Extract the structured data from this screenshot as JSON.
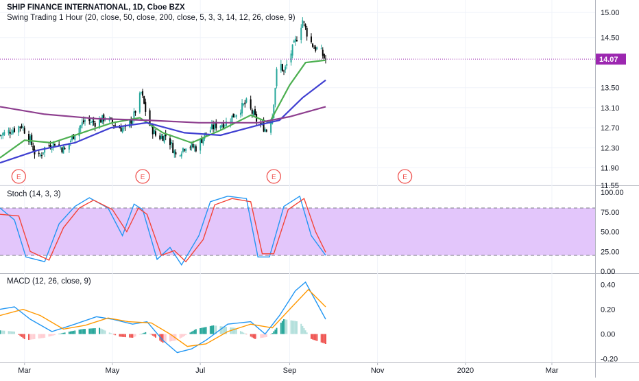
{
  "header": {
    "symbol_line": "SHIP FINANCE INTERNATIONAL, 1D, Cboe BZX",
    "study_line": "Swing Trading 1 Hour (20, close, 50, close, 200, close, 5, 3, 3, 14, 12, 26, close, 9)"
  },
  "colors": {
    "up": "#26a69a",
    "down": "#000000",
    "sma20": "#4caf50",
    "sma50": "#3f3fd1",
    "sma200": "#8e3f8f",
    "stoch_k": "#2196f3",
    "stoch_d": "#f44336",
    "stoch_band": "#e3c6fb",
    "macd": "#2196f3",
    "signal": "#ff9800",
    "hist_pos_strong": "#26a69a",
    "hist_pos_weak": "#b2dfdb",
    "hist_neg_strong": "#ef5350",
    "hist_neg_weak": "#ffcdd2",
    "last_price": "#9c27b0"
  },
  "chart_data": [
    {
      "type": "candlestick",
      "title": "SHIP FINANCE INTERNATIONAL, 1D, Cboe BZX",
      "x_range": [
        "2019-02-12",
        "2020-03-31"
      ],
      "x_ticks": [
        {
          "date": "2019-03-01",
          "label": "Mar"
        },
        {
          "date": "2019-05-01",
          "label": "May"
        },
        {
          "date": "2019-07-01",
          "label": "Jul"
        },
        {
          "date": "2019-09-01",
          "label": "Sep"
        },
        {
          "date": "2019-11-01",
          "label": "Nov"
        },
        {
          "date": "2020-01-01",
          "label": "2020"
        },
        {
          "date": "2020-03-01",
          "label": "Mar"
        }
      ],
      "y_range": [
        11.55,
        15.25
      ],
      "y_ticks": [
        "15.00",
        "14.50",
        "14.07",
        "13.50",
        "13.10",
        "12.70",
        "12.30",
        "11.90",
        "11.55"
      ],
      "last_price": 14.07,
      "last_price_label": "14.07",
      "close_path": [
        {
          "date": "2019-02-12",
          "close": 12.55
        },
        {
          "date": "2019-02-20",
          "close": 12.65
        },
        {
          "date": "2019-02-27",
          "close": 12.75
        },
        {
          "date": "2019-03-05",
          "close": 12.45
        },
        {
          "date": "2019-03-10",
          "close": 12.05
        },
        {
          "date": "2019-03-15",
          "close": 12.3
        },
        {
          "date": "2019-03-22",
          "close": 12.4
        },
        {
          "date": "2019-03-29",
          "close": 12.25
        },
        {
          "date": "2019-04-05",
          "close": 12.6
        },
        {
          "date": "2019-04-12",
          "close": 12.85
        },
        {
          "date": "2019-04-19",
          "close": 12.8
        },
        {
          "date": "2019-04-26",
          "close": 12.9
        },
        {
          "date": "2019-05-03",
          "close": 12.75
        },
        {
          "date": "2019-05-10",
          "close": 12.65
        },
        {
          "date": "2019-05-16",
          "close": 12.95
        },
        {
          "date": "2019-05-21",
          "close": 13.4
        },
        {
          "date": "2019-05-26",
          "close": 12.8
        },
        {
          "date": "2019-06-01",
          "close": 12.5
        },
        {
          "date": "2019-06-08",
          "close": 12.55
        },
        {
          "date": "2019-06-14",
          "close": 12.15
        },
        {
          "date": "2019-06-21",
          "close": 12.35
        },
        {
          "date": "2019-06-28",
          "close": 12.3
        },
        {
          "date": "2019-07-05",
          "close": 12.6
        },
        {
          "date": "2019-07-12",
          "close": 12.75
        },
        {
          "date": "2019-07-19",
          "close": 12.8
        },
        {
          "date": "2019-07-26",
          "close": 13.0
        },
        {
          "date": "2019-08-02",
          "close": 13.2
        },
        {
          "date": "2019-08-09",
          "close": 12.85
        },
        {
          "date": "2019-08-16",
          "close": 12.65
        },
        {
          "date": "2019-08-20",
          "close": 12.95
        },
        {
          "date": "2019-08-24",
          "close": 14.1
        },
        {
          "date": "2019-08-28",
          "close": 13.8
        },
        {
          "date": "2019-09-02",
          "close": 14.2
        },
        {
          "date": "2019-09-06",
          "close": 14.5
        },
        {
          "date": "2019-09-10",
          "close": 14.85
        },
        {
          "date": "2019-09-14",
          "close": 14.5
        },
        {
          "date": "2019-09-18",
          "close": 14.3
        },
        {
          "date": "2019-09-22",
          "close": 14.25
        },
        {
          "date": "2019-09-26",
          "close": 14.05
        }
      ],
      "series": [
        {
          "name": "SMA 20",
          "color_key": "sma20",
          "points": [
            {
              "date": "2019-02-12",
              "value": 12.1
            },
            {
              "date": "2019-03-01",
              "value": 12.45
            },
            {
              "date": "2019-03-20",
              "value": 12.4
            },
            {
              "date": "2019-04-10",
              "value": 12.6
            },
            {
              "date": "2019-05-01",
              "value": 12.8
            },
            {
              "date": "2019-05-20",
              "value": 12.9
            },
            {
              "date": "2019-06-05",
              "value": 12.6
            },
            {
              "date": "2019-06-25",
              "value": 12.4
            },
            {
              "date": "2019-07-15",
              "value": 12.65
            },
            {
              "date": "2019-08-05",
              "value": 12.95
            },
            {
              "date": "2019-08-18",
              "value": 12.8
            },
            {
              "date": "2019-09-01",
              "value": 13.55
            },
            {
              "date": "2019-09-12",
              "value": 14.0
            },
            {
              "date": "2019-09-26",
              "value": 14.05
            }
          ]
        },
        {
          "name": "SMA 50",
          "color_key": "sma50",
          "points": [
            {
              "date": "2019-02-12",
              "value": 12.0
            },
            {
              "date": "2019-03-10",
              "value": 12.25
            },
            {
              "date": "2019-04-05",
              "value": 12.4
            },
            {
              "date": "2019-04-30",
              "value": 12.7
            },
            {
              "date": "2019-05-25",
              "value": 12.8
            },
            {
              "date": "2019-06-20",
              "value": 12.6
            },
            {
              "date": "2019-07-15",
              "value": 12.55
            },
            {
              "date": "2019-08-10",
              "value": 12.75
            },
            {
              "date": "2019-08-25",
              "value": 12.85
            },
            {
              "date": "2019-09-10",
              "value": 13.3
            },
            {
              "date": "2019-09-26",
              "value": 13.65
            }
          ]
        },
        {
          "name": "SMA 200",
          "color_key": "sma200",
          "points": [
            {
              "date": "2019-02-12",
              "value": 13.12
            },
            {
              "date": "2019-03-15",
              "value": 12.97
            },
            {
              "date": "2019-04-20",
              "value": 12.88
            },
            {
              "date": "2019-05-25",
              "value": 12.85
            },
            {
              "date": "2019-06-30",
              "value": 12.8
            },
            {
              "date": "2019-08-10",
              "value": 12.8
            },
            {
              "date": "2019-09-01",
              "value": 12.92
            },
            {
              "date": "2019-09-26",
              "value": 13.12
            }
          ]
        }
      ],
      "earnings_markers": [
        {
          "date": "2019-02-25",
          "label": "E"
        },
        {
          "date": "2019-05-22",
          "label": "E"
        },
        {
          "date": "2019-08-21",
          "label": "E"
        },
        {
          "date": "2019-11-20",
          "label": "E"
        }
      ]
    },
    {
      "type": "line",
      "title": "Stoch (14, 3, 3)",
      "y_range": [
        0,
        100
      ],
      "y_ticks": [
        "100.00",
        "75.00",
        "50.00",
        "25.00",
        "0.00"
      ],
      "band": [
        20,
        80
      ],
      "series": [
        {
          "name": "%K",
          "color_key": "stoch_k",
          "points": [
            {
              "date": "2019-02-12",
              "value": 80
            },
            {
              "date": "2019-02-22",
              "value": 65
            },
            {
              "date": "2019-03-02",
              "value": 18
            },
            {
              "date": "2019-03-15",
              "value": 12
            },
            {
              "date": "2019-03-25",
              "value": 60
            },
            {
              "date": "2019-04-05",
              "value": 82
            },
            {
              "date": "2019-04-15",
              "value": 93
            },
            {
              "date": "2019-04-28",
              "value": 80
            },
            {
              "date": "2019-05-08",
              "value": 45
            },
            {
              "date": "2019-05-16",
              "value": 85
            },
            {
              "date": "2019-05-22",
              "value": 78
            },
            {
              "date": "2019-06-01",
              "value": 15
            },
            {
              "date": "2019-06-10",
              "value": 30
            },
            {
              "date": "2019-06-18",
              "value": 8
            },
            {
              "date": "2019-06-30",
              "value": 45
            },
            {
              "date": "2019-07-08",
              "value": 88
            },
            {
              "date": "2019-07-20",
              "value": 95
            },
            {
              "date": "2019-08-02",
              "value": 92
            },
            {
              "date": "2019-08-10",
              "value": 18
            },
            {
              "date": "2019-08-18",
              "value": 18
            },
            {
              "date": "2019-08-28",
              "value": 82
            },
            {
              "date": "2019-09-08",
              "value": 95
            },
            {
              "date": "2019-09-16",
              "value": 45
            },
            {
              "date": "2019-09-26",
              "value": 20
            }
          ]
        },
        {
          "name": "%D",
          "color_key": "stoch_d",
          "points": [
            {
              "date": "2019-02-12",
              "value": 72
            },
            {
              "date": "2019-02-25",
              "value": 70
            },
            {
              "date": "2019-03-05",
              "value": 25
            },
            {
              "date": "2019-03-18",
              "value": 14
            },
            {
              "date": "2019-03-28",
              "value": 55
            },
            {
              "date": "2019-04-08",
              "value": 80
            },
            {
              "date": "2019-04-18",
              "value": 90
            },
            {
              "date": "2019-05-01",
              "value": 78
            },
            {
              "date": "2019-05-11",
              "value": 50
            },
            {
              "date": "2019-05-19",
              "value": 80
            },
            {
              "date": "2019-05-25",
              "value": 72
            },
            {
              "date": "2019-06-04",
              "value": 20
            },
            {
              "date": "2019-06-13",
              "value": 26
            },
            {
              "date": "2019-06-21",
              "value": 12
            },
            {
              "date": "2019-07-03",
              "value": 40
            },
            {
              "date": "2019-07-11",
              "value": 84
            },
            {
              "date": "2019-07-23",
              "value": 92
            },
            {
              "date": "2019-08-05",
              "value": 88
            },
            {
              "date": "2019-08-13",
              "value": 22
            },
            {
              "date": "2019-08-21",
              "value": 22
            },
            {
              "date": "2019-08-31",
              "value": 78
            },
            {
              "date": "2019-09-11",
              "value": 92
            },
            {
              "date": "2019-09-19",
              "value": 50
            },
            {
              "date": "2019-09-26",
              "value": 24
            }
          ]
        }
      ]
    },
    {
      "type": "line",
      "title": "MACD (12, 26, close, 9)",
      "y_range": [
        -0.23,
        0.47
      ],
      "y_ticks": [
        "0.40",
        "0.20",
        "0.00",
        "-0.20"
      ],
      "series": [
        {
          "name": "MACD",
          "color_key": "macd",
          "points": [
            {
              "date": "2019-02-12",
              "value": 0.2
            },
            {
              "date": "2019-02-22",
              "value": 0.22
            },
            {
              "date": "2019-03-05",
              "value": 0.12
            },
            {
              "date": "2019-03-20",
              "value": 0.02
            },
            {
              "date": "2019-04-05",
              "value": 0.08
            },
            {
              "date": "2019-04-20",
              "value": 0.14
            },
            {
              "date": "2019-05-01",
              "value": 0.12
            },
            {
              "date": "2019-05-15",
              "value": 0.08
            },
            {
              "date": "2019-05-25",
              "value": 0.1
            },
            {
              "date": "2019-06-05",
              "value": -0.05
            },
            {
              "date": "2019-06-15",
              "value": -0.15
            },
            {
              "date": "2019-06-25",
              "value": -0.12
            },
            {
              "date": "2019-07-05",
              "value": -0.05
            },
            {
              "date": "2019-07-20",
              "value": 0.08
            },
            {
              "date": "2019-08-05",
              "value": 0.1
            },
            {
              "date": "2019-08-15",
              "value": 0.0
            },
            {
              "date": "2019-08-25",
              "value": 0.15
            },
            {
              "date": "2019-09-05",
              "value": 0.35
            },
            {
              "date": "2019-09-12",
              "value": 0.42
            },
            {
              "date": "2019-09-26",
              "value": 0.12
            }
          ]
        },
        {
          "name": "Signal",
          "color_key": "signal",
          "points": [
            {
              "date": "2019-02-12",
              "value": 0.15
            },
            {
              "date": "2019-02-28",
              "value": 0.2
            },
            {
              "date": "2019-03-12",
              "value": 0.15
            },
            {
              "date": "2019-03-28",
              "value": 0.04
            },
            {
              "date": "2019-04-12",
              "value": 0.07
            },
            {
              "date": "2019-04-28",
              "value": 0.13
            },
            {
              "date": "2019-05-12",
              "value": 0.1
            },
            {
              "date": "2019-05-28",
              "value": 0.09
            },
            {
              "date": "2019-06-10",
              "value": 0.0
            },
            {
              "date": "2019-06-22",
              "value": -0.1
            },
            {
              "date": "2019-07-05",
              "value": -0.08
            },
            {
              "date": "2019-07-20",
              "value": 0.02
            },
            {
              "date": "2019-08-05",
              "value": 0.08
            },
            {
              "date": "2019-08-20",
              "value": 0.05
            },
            {
              "date": "2019-09-01",
              "value": 0.2
            },
            {
              "date": "2019-09-14",
              "value": 0.36
            },
            {
              "date": "2019-09-26",
              "value": 0.22
            }
          ]
        }
      ],
      "histogram": [
        {
          "date": "2019-02-12",
          "value": 0.03
        },
        {
          "date": "2019-02-22",
          "value": 0.02
        },
        {
          "date": "2019-03-02",
          "value": -0.05
        },
        {
          "date": "2019-03-15",
          "value": -0.03
        },
        {
          "date": "2019-03-28",
          "value": 0.01
        },
        {
          "date": "2019-04-10",
          "value": 0.04
        },
        {
          "date": "2019-04-22",
          "value": 0.05
        },
        {
          "date": "2019-05-05",
          "value": -0.02
        },
        {
          "date": "2019-05-15",
          "value": -0.03
        },
        {
          "date": "2019-05-25",
          "value": 0.02
        },
        {
          "date": "2019-06-05",
          "value": -0.07
        },
        {
          "date": "2019-06-15",
          "value": -0.05
        },
        {
          "date": "2019-06-28",
          "value": 0.04
        },
        {
          "date": "2019-07-10",
          "value": 0.07
        },
        {
          "date": "2019-07-25",
          "value": 0.05
        },
        {
          "date": "2019-08-08",
          "value": -0.04
        },
        {
          "date": "2019-08-18",
          "value": -0.02
        },
        {
          "date": "2019-08-28",
          "value": 0.12
        },
        {
          "date": "2019-09-08",
          "value": 0.1
        },
        {
          "date": "2019-09-16",
          "value": -0.04
        },
        {
          "date": "2019-09-26",
          "value": -0.08
        }
      ]
    }
  ]
}
